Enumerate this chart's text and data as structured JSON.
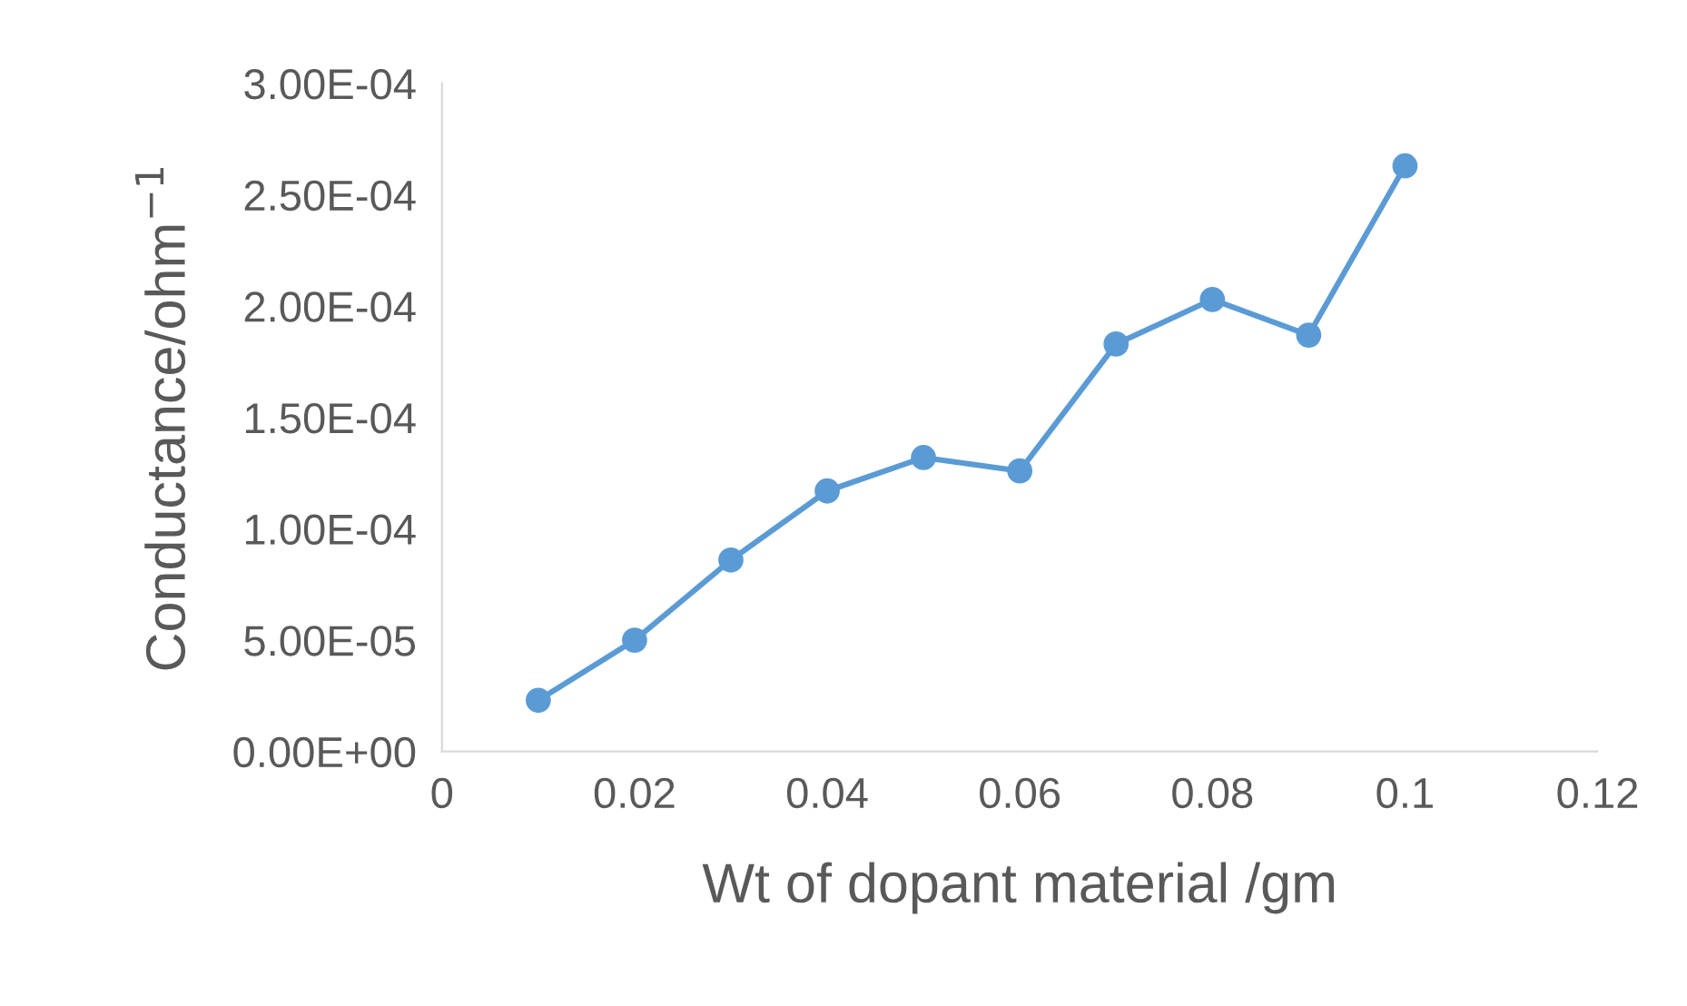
{
  "chart_data": {
    "type": "line",
    "xlabel": "Wt of dopant material /gm",
    "ylabel": "Conductance/ohm$^{−1}$",
    "x": [
      0.01,
      0.02,
      0.03,
      0.04,
      0.05,
      0.06,
      0.07,
      0.08,
      0.09,
      0.1
    ],
    "series": [
      {
        "color": "#5b9bd5",
        "values": [
          2.3e-05,
          5e-05,
          8.6e-05,
          0.000117,
          0.000132,
          0.000126,
          0.000183,
          0.000203,
          0.000187,
          0.000263
        ]
      }
    ],
    "xlim": [
      0,
      0.12
    ],
    "xticks": [
      0,
      0.02,
      0.04,
      0.06,
      0.08,
      0.1,
      0.12
    ],
    "ylim": [
      0,
      0.0003
    ],
    "yticks": [
      {
        "value": 0,
        "label": "0.00E+00"
      },
      {
        "value": 5e-05,
        "label": "5.00E-05"
      },
      {
        "value": 0.0001,
        "label": "1.00E-04"
      },
      {
        "value": 0.00015,
        "label": "1.50E-04"
      },
      {
        "value": 0.0002,
        "label": "2.00E-04"
      },
      {
        "value": 0.00025,
        "label": "2.50E-04"
      },
      {
        "value": 0.0003,
        "label": "3.00E-04"
      }
    ],
    "grid": false,
    "legend": false,
    "marker": "circle",
    "line_style": "solid"
  }
}
